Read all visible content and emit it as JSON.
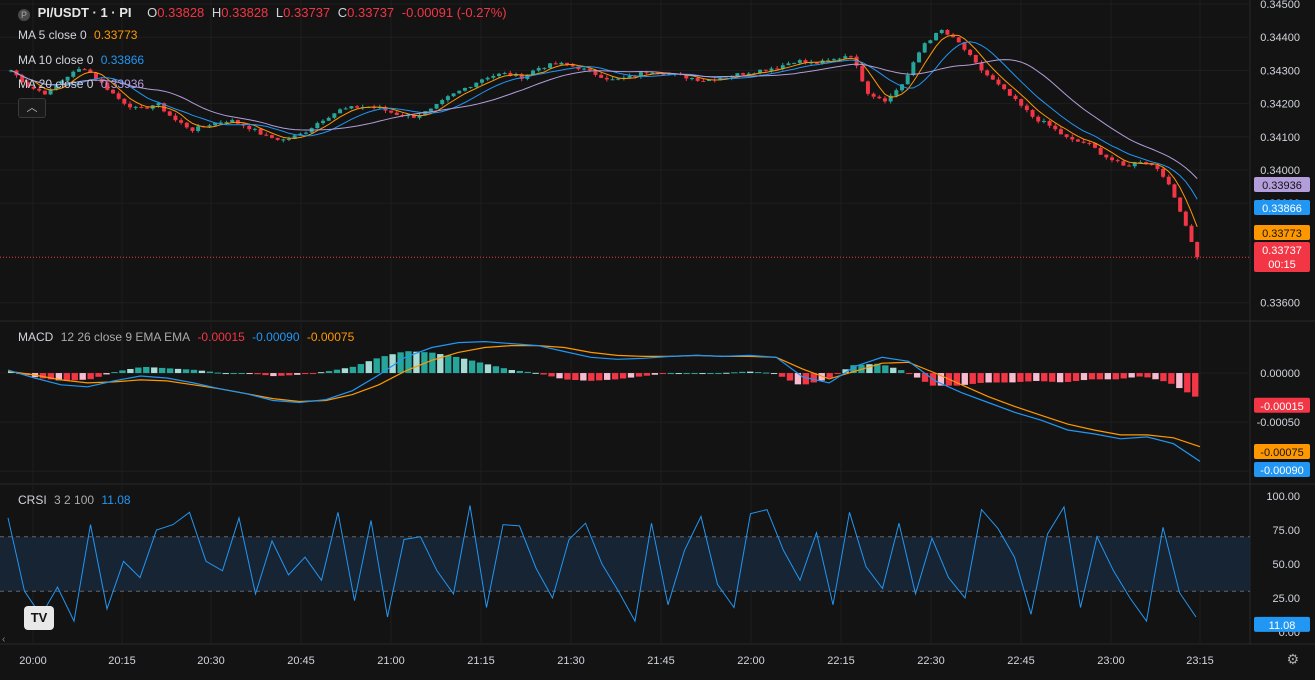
{
  "header": {
    "symbol": "PI/USDT · 1 · PI",
    "o_label": "O",
    "o_value": "0.33828",
    "h_label": "H",
    "h_value": "0.33828",
    "l_label": "L",
    "l_value": "0.33737",
    "c_label": "C",
    "c_value": "0.33737",
    "change": "-0.00091 (-0.27%)"
  },
  "indicators": {
    "ma5": {
      "label": "MA 5 close 0",
      "value": "0.33773",
      "color": "#ff9800"
    },
    "ma10": {
      "label": "MA 10 close 0",
      "value": "0.33866",
      "color": "#2196f3"
    },
    "ma20": {
      "label": "MA 20 close 0",
      "value": "0.33936",
      "color": "#b39ddb"
    },
    "macd": {
      "label": "MACD",
      "params": "12 26 close 9 EMA EMA",
      "hist": "-0.00015",
      "macd": "-0.00090",
      "signal": "-0.00075"
    },
    "crsi": {
      "label": "CRSI",
      "params": "3 2 100",
      "value": "11.08"
    }
  },
  "icons": {
    "collapse": "chevron-up-icon",
    "logo": "tradingview-logo-icon",
    "settings": "gear-icon"
  },
  "logo_text": "TV",
  "colors": {
    "up": "#26a69a",
    "down": "#f23645",
    "ma5": "#ff9800",
    "ma10": "#2196f3",
    "ma20": "#b39ddb",
    "macd": "#2196f3",
    "signal": "#ff9800",
    "crsi": "#2196f3"
  },
  "chart_data": [
    {
      "type": "candlestick",
      "title": "PI/USDT · 1 · PI",
      "x_ticks": [
        "20:00",
        "20:15",
        "20:30",
        "20:45",
        "21:00",
        "21:15",
        "21:30",
        "21:45",
        "22:00",
        "22:15",
        "22:30",
        "22:45",
        "23:00",
        "23:15"
      ],
      "y_ticks": [
        "0.34500",
        "0.34400",
        "0.34300",
        "0.34200",
        "0.34100",
        "0.34000",
        "0.33900",
        "0.33600"
      ],
      "ylim": [
        0.3356,
        0.345
      ],
      "close_path": [
        0.343,
        0.3425,
        0.3423,
        0.3428,
        0.3431,
        0.3426,
        0.3421,
        0.3418,
        0.342,
        0.3415,
        0.3412,
        0.3414,
        0.3415,
        0.3413,
        0.341,
        0.3409,
        0.3411,
        0.3415,
        0.3418,
        0.3419,
        0.3419,
        0.3417,
        0.3416,
        0.3418,
        0.3422,
        0.3425,
        0.3428,
        0.3429,
        0.3428,
        0.3431,
        0.3432,
        0.3431,
        0.3429,
        0.3427,
        0.3428,
        0.343,
        0.3429,
        0.3428,
        0.3427,
        0.3428,
        0.3429,
        0.343,
        0.3431,
        0.3433,
        0.3432,
        0.3433,
        0.3435,
        0.3423,
        0.3421,
        0.3427,
        0.3438,
        0.3442,
        0.3438,
        0.3431,
        0.3426,
        0.3421,
        0.3416,
        0.3413,
        0.3409,
        0.3408,
        0.3404,
        0.3401,
        0.3403,
        0.34,
        0.3389,
        0.3374
      ],
      "price_labels": [
        {
          "text": "0.33936",
          "bg": "#b39ddb",
          "fg": "#131313",
          "value": 0.33936
        },
        {
          "text": "0.33866",
          "bg": "#2196f3",
          "fg": "#ffffff",
          "value": 0.33866
        },
        {
          "text": "0.33773",
          "bg": "#ff9800",
          "fg": "#131313",
          "value": 0.33773
        },
        {
          "text": "0.33737",
          "bg": "#f23645",
          "fg": "#ffffff",
          "value": 0.33737
        }
      ],
      "countdown": "00:15"
    },
    {
      "type": "bar+line",
      "title": "MACD 12 26 close 9 EMA EMA",
      "y_ticks": [
        "0.00000",
        "-0.00050",
        "-0.00100"
      ],
      "ylim": [
        -0.00112,
        0.00052
      ],
      "macd_path": [
        3e-05,
        -5e-05,
        -0.00012,
        -0.00014,
        -8e-05,
        -3e-05,
        -5e-05,
        -0.0001,
        -0.00016,
        -0.00021,
        -0.00028,
        -0.0003,
        -0.00027,
        -0.00018,
        -2e-05,
        0.00016,
        0.00026,
        0.00031,
        0.00032,
        0.0003,
        0.00028,
        0.00022,
        0.00016,
        0.00014,
        0.00015,
        0.00017,
        0.00018,
        0.00017,
        0.00018,
        0.00016,
        -4e-05,
        -0.0001,
        7e-05,
        0.00016,
        0.00012,
        -8e-05,
        -0.0002,
        -0.0003,
        -0.0004,
        -0.00048,
        -0.00058,
        -0.00062,
        -0.00067,
        -0.00065,
        -0.00072,
        -0.0009
      ],
      "signal_path": [
        2e-05,
        -2e-05,
        -7e-05,
        -0.0001,
        -9e-05,
        -7e-05,
        -8e-05,
        -0.00012,
        -0.00016,
        -0.00021,
        -0.00026,
        -0.00029,
        -0.00028,
        -0.00022,
        -0.00012,
        2e-05,
        0.00013,
        0.00021,
        0.00026,
        0.00028,
        0.00028,
        0.00026,
        0.00021,
        0.00018,
        0.00017,
        0.00017,
        0.00018,
        0.00017,
        0.00017,
        0.00016,
        4e-05,
        -6e-05,
        2e-05,
        0.0001,
        0.00011,
        0.0,
        -0.00012,
        -0.00024,
        -0.00034,
        -0.00043,
        -0.00052,
        -0.00058,
        -0.00063,
        -0.00063,
        -0.00066,
        -0.00075
      ],
      "histogram_last": -0.00015,
      "price_labels": [
        {
          "text": "-0.00015",
          "bg": "#f23645",
          "fg": "#ffffff",
          "value": -0.00015
        },
        {
          "text": "-0.00075",
          "bg": "#ff9800",
          "fg": "#131313",
          "value": -0.00075
        },
        {
          "text": "-0.00090",
          "bg": "#2196f3",
          "fg": "#ffffff",
          "value": -0.0009
        }
      ]
    },
    {
      "type": "line",
      "title": "CRSI 3 2 100",
      "y_ticks": [
        "100.00",
        "75.00",
        "50.00",
        "25.00",
        "0.00"
      ],
      "ylim": [
        0,
        100
      ],
      "bands": [
        30,
        70
      ],
      "values": [
        84,
        30,
        12,
        33,
        8,
        79,
        17,
        52,
        40,
        75,
        79,
        88,
        52,
        45,
        84,
        28,
        67,
        42,
        55,
        38,
        88,
        23,
        82,
        11,
        68,
        70,
        45,
        28,
        93,
        18,
        79,
        78,
        47,
        25,
        68,
        80,
        50,
        30,
        8,
        80,
        20,
        60,
        85,
        35,
        18,
        87,
        90,
        60,
        38,
        73,
        20,
        88,
        48,
        32,
        80,
        28,
        69,
        40,
        25,
        90,
        76,
        55,
        13,
        72,
        92,
        18,
        70,
        45,
        25,
        8,
        77,
        29,
        11
      ],
      "last": 11.08,
      "price_labels": [
        {
          "text": "11.08",
          "bg": "#2196f3",
          "fg": "#ffffff",
          "value": 11.08
        }
      ]
    }
  ]
}
